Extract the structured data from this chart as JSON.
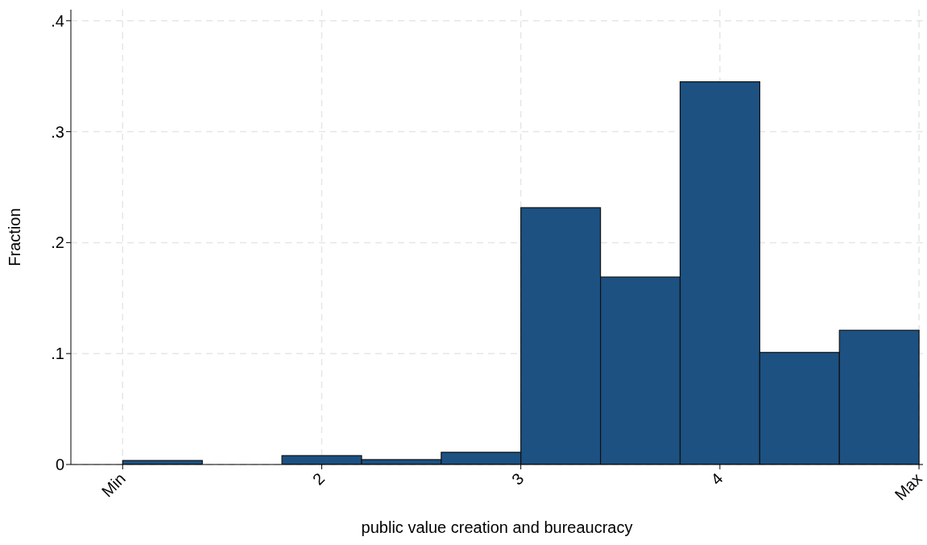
{
  "chart_data": {
    "type": "histogram",
    "xlabel": "public value creation and bureaucracy",
    "ylabel": "Fraction",
    "bins": [
      1,
      1.4,
      1.8,
      2.2,
      2.6,
      3,
      3.4,
      3.8,
      4.2,
      4.6,
      5
    ],
    "values": [
      0.0036,
      0,
      0.008,
      0.0044,
      0.011,
      0.2315,
      0.169,
      0.345,
      0.101,
      0.121
    ],
    "color": "#1c5182",
    "xlim": [
      0.74,
      5.02
    ],
    "ylim": [
      0,
      0.41
    ],
    "xticks": [
      {
        "value": 1,
        "label": "Min"
      },
      2,
      3,
      4,
      {
        "value": 5,
        "label": "Max"
      }
    ],
    "yticks": [
      0,
      {
        "value": 0.1,
        "label": ".1"
      },
      {
        "value": 0.2,
        "label": ".2"
      },
      {
        "value": 0.3,
        "label": ".3"
      },
      {
        "value": 0.4,
        "label": ".4"
      }
    ],
    "grid": true
  }
}
